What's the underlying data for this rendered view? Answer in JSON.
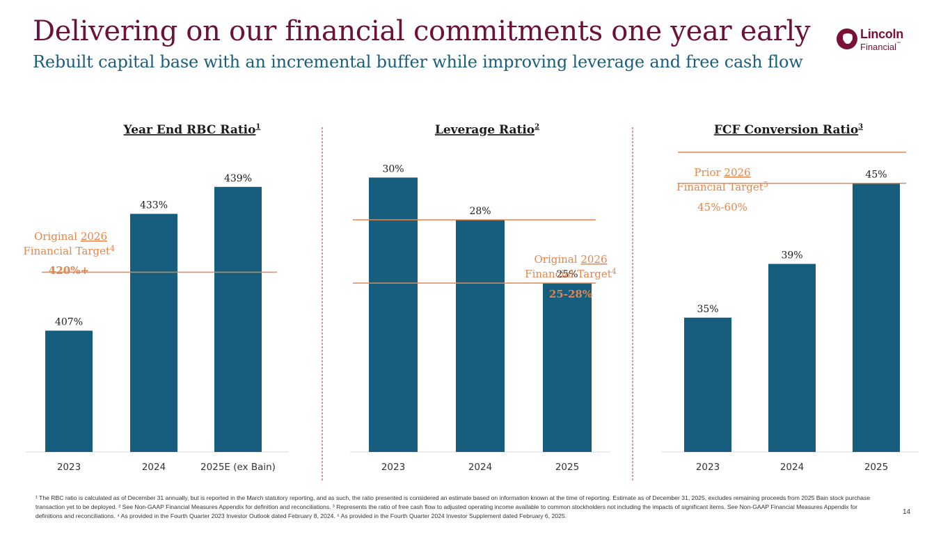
{
  "header": {
    "title": "Delivering on our financial commitments one year early",
    "subtitle": "Rebuilt capital base with an incremental buffer while improving leverage and free cash flow"
  },
  "logo": {
    "line1": "Lincoln",
    "line2": "Financial",
    "mark": "™"
  },
  "colors": {
    "bar": "#175e7e",
    "target": "#e8844a",
    "title": "#6b1238",
    "subtitle": "#1b5d7d",
    "divider": "#a33b4a"
  },
  "chart_data": [
    {
      "type": "bar",
      "title": "Year End RBC Ratio",
      "title_sup": "1",
      "categories": [
        "2023",
        "2024",
        "2025E (ex Bain)"
      ],
      "values": [
        407,
        433,
        439
      ],
      "value_labels": [
        "407%",
        "433%",
        "439%"
      ],
      "ylim": [
        380,
        445
      ],
      "target": {
        "value": 420,
        "line1": "Original ",
        "year": "2026",
        "line2": "Financial Target",
        "sup": "4",
        "label": "420%+"
      }
    },
    {
      "type": "bar",
      "title": "Leverage Ratio",
      "title_sup": "2",
      "categories": [
        "2023",
        "2024",
        "2025"
      ],
      "values": [
        30,
        28,
        25
      ],
      "value_labels": [
        "30%",
        "28%",
        "25%"
      ],
      "ylim": [
        17,
        31
      ],
      "target": {
        "range": [
          25,
          28
        ],
        "line1": "Original ",
        "year": "2026",
        "line2": "Financial Target",
        "sup": "4",
        "label": "25-28%"
      }
    },
    {
      "type": "bar",
      "title": "FCF Conversion Ratio",
      "title_sup": "3",
      "categories": [
        "2023",
        "2024",
        "2025"
      ],
      "values": [
        35,
        39,
        45
      ],
      "value_labels": [
        "35%",
        "39%",
        "45%"
      ],
      "ylim": [
        25,
        47
      ],
      "target": {
        "range": [
          45,
          60
        ],
        "line1": "Prior ",
        "year": "2026",
        "line2": "Financial Target",
        "sup": "5",
        "label": "45%-60%"
      }
    }
  ],
  "footnote": "¹ The RBC ratio is calculated as of December 31 annually, but is reported in the March statutory reporting, and as such, the ratio presented is considered an estimate based on information known at the time of reporting. Estimate as of December 31, 2025, excludes remaining proceeds from 2025 Bain stock purchase transaction yet to be deployed. ² See Non-GAAP Financial Measures Appendix for definition and reconciliations. ³ Represents the ratio of free cash flow to adjusted operating income available to common stockholders not including the impacts of significant items. See Non-GAAP Financial Measures Appendix for definitions and reconciliations. ⁴ As provided in the Fourth Quarter 2023 Investor Outlook dated February 8, 2024. ⁵ As provided in the Fourth Quarter 2024 Investor Supplement dated February 6, 2025.",
  "page_number": "14"
}
